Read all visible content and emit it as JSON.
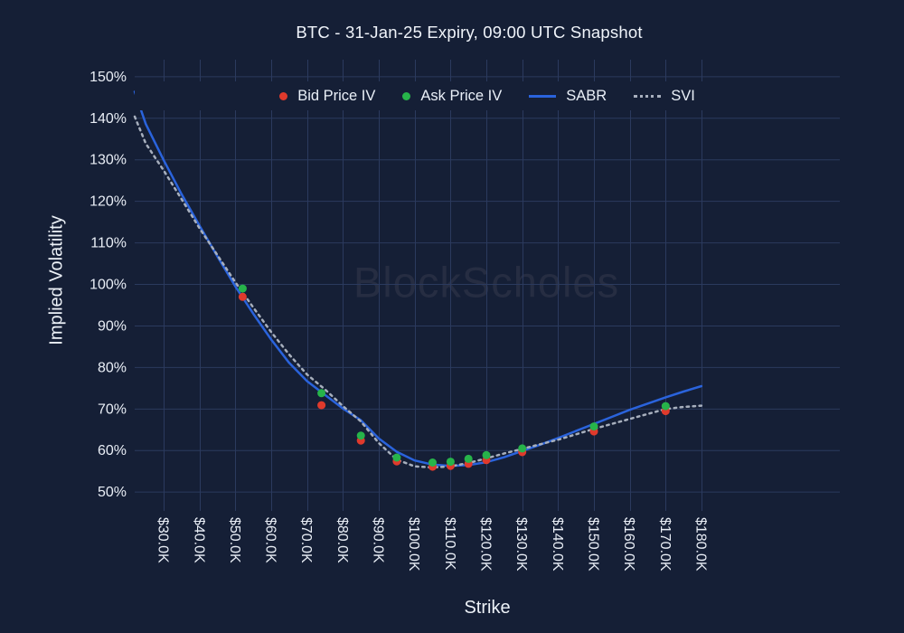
{
  "header": {
    "title": "BTC - 31-Jan-25 Expiry, 09:00 UTC Snapshot"
  },
  "watermark": {
    "text": "BlockScholes"
  },
  "colors": {
    "background": "#151F36",
    "grid": "#2B3A5E",
    "text": "#E9EEF6",
    "bid": "#DF3A2C",
    "ask": "#27B44A",
    "sabr": "#2A63DC",
    "svi": "#A7AFBD",
    "watermark": "#262D42"
  },
  "legend": {
    "items": [
      {
        "label": "Bid Price IV",
        "marker": "dot",
        "color": "#DF3A2C"
      },
      {
        "label": "Ask Price IV",
        "marker": "dot",
        "color": "#27B44A"
      },
      {
        "label": "SABR",
        "marker": "line",
        "color": "#2A63DC"
      },
      {
        "label": "SVI",
        "marker": "dotted-line",
        "color": "#A7AFBD"
      }
    ]
  },
  "chart_data": {
    "type": "mixed",
    "title": "BTC - 31-Jan-25 Expiry, 09:00 UTC Snapshot",
    "xlabel": "Strike",
    "ylabel": "Implied Volatility",
    "x_unit": "strike price in $ thousands",
    "y_unit": "implied volatility in %",
    "xlim": [
      21.9,
      218.6
    ],
    "ylim": [
      47.1,
      154.0
    ],
    "grid": true,
    "legend_position": "top-center-horizontal",
    "x_ticks": {
      "values": [
        30,
        40,
        50,
        60,
        70,
        80,
        90,
        100,
        110,
        120,
        130,
        140,
        150,
        160,
        170,
        180
      ],
      "labels": [
        "$30.0K",
        "$40.0K",
        "$50.0K",
        "$60.0K",
        "$70.0K",
        "$80.0K",
        "$90.0K",
        "$100.0K",
        "$110.0K",
        "$120.0K",
        "$130.0K",
        "$140.0K",
        "$150.0K",
        "$160.0K",
        "$170.0K",
        "$180.0K"
      ],
      "angle_deg": 90
    },
    "y_ticks": {
      "values": [
        50,
        60,
        70,
        80,
        90,
        100,
        110,
        120,
        130,
        140,
        150
      ],
      "labels": [
        "50%",
        "60%",
        "70%",
        "80%",
        "90%",
        "100%",
        "110%",
        "120%",
        "130%",
        "140%",
        "150%"
      ]
    },
    "series": [
      {
        "name": "Bid Price IV",
        "type": "scatter",
        "color": "#DF3A2C",
        "x": [
          52,
          74,
          85,
          95,
          105,
          110,
          115,
          120,
          130,
          150,
          170
        ],
        "y": [
          96.9,
          70.8,
          62.3,
          57.3,
          56.0,
          56.2,
          56.7,
          57.6,
          59.5,
          64.5,
          69.4
        ]
      },
      {
        "name": "Ask Price IV",
        "type": "scatter",
        "color": "#27B44A",
        "x": [
          52,
          74,
          85,
          95,
          105,
          110,
          115,
          120,
          130,
          150,
          170
        ],
        "y": [
          98.9,
          73.7,
          63.5,
          58.2,
          57.0,
          57.2,
          57.9,
          58.8,
          60.4,
          65.7,
          70.6
        ]
      },
      {
        "name": "SABR",
        "type": "line",
        "dash": "solid",
        "color": "#2A63DC",
        "x": [
          21.9,
          25,
          30,
          35,
          40,
          45,
          50,
          55,
          60,
          65,
          70,
          75,
          80,
          85,
          90,
          95,
          100,
          105,
          110,
          115,
          120,
          125,
          130,
          135,
          140,
          145,
          150,
          155,
          160,
          165,
          170,
          175,
          180
        ],
        "y": [
          146.3,
          138.5,
          129.8,
          121.6,
          114.0,
          106.6,
          99.4,
          92.8,
          86.6,
          81.0,
          76.6,
          73.3,
          70.0,
          67.2,
          62.8,
          59.6,
          57.5,
          56.5,
          56.2,
          56.4,
          57.1,
          58.3,
          59.8,
          61.3,
          62.9,
          64.6,
          66.3,
          68.0,
          69.7,
          71.2,
          72.7,
          74.1,
          75.4
        ]
      },
      {
        "name": "SVI",
        "type": "line",
        "dash": "dotted",
        "color": "#A7AFBD",
        "x": [
          21.9,
          25,
          30,
          35,
          40,
          45,
          50,
          55,
          60,
          65,
          70,
          75,
          80,
          85,
          90,
          95,
          100,
          105,
          110,
          115,
          120,
          125,
          130,
          135,
          140,
          145,
          150,
          155,
          160,
          165,
          170,
          175,
          180
        ],
        "y": [
          140.3,
          133.8,
          127.3,
          120.4,
          113.4,
          106.9,
          100.4,
          94.3,
          88.4,
          83.0,
          78.2,
          74.6,
          70.6,
          66.9,
          61.7,
          57.7,
          56.1,
          55.8,
          56.1,
          56.9,
          58.0,
          59.2,
          60.3,
          61.4,
          62.5,
          63.8,
          65.1,
          66.3,
          67.5,
          68.7,
          69.9,
          70.4,
          70.7
        ]
      }
    ]
  }
}
